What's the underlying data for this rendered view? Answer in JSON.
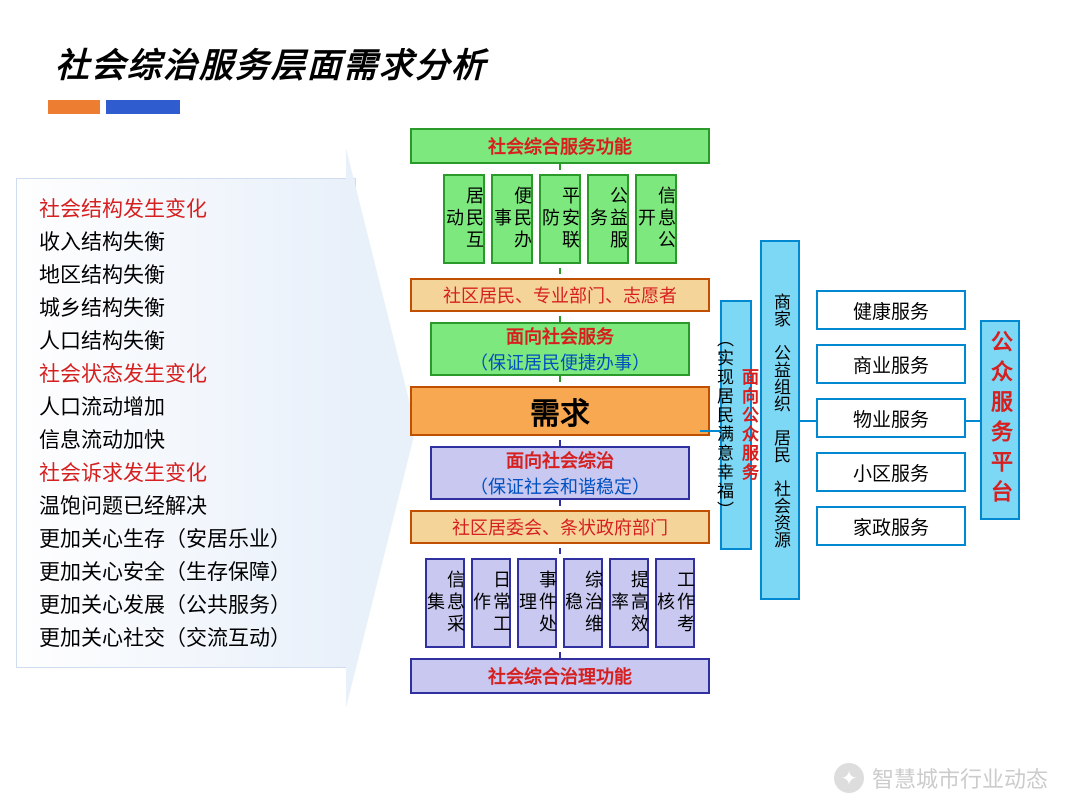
{
  "title": "社会综治服务层面需求分析",
  "left_items": [
    {
      "text": "社会结构发生变化",
      "red": true
    },
    {
      "text": "收入结构失衡",
      "red": false
    },
    {
      "text": "地区结构失衡",
      "red": false
    },
    {
      "text": "城乡结构失衡",
      "red": false
    },
    {
      "text": "人口结构失衡",
      "red": false
    },
    {
      "text": "社会状态发生变化",
      "red": true
    },
    {
      "text": "人口流动增加",
      "red": false
    },
    {
      "text": "信息流动加快",
      "red": false
    },
    {
      "text": "社会诉求发生变化",
      "red": true
    },
    {
      "text": "温饱问题已经解决",
      "red": false
    },
    {
      "text": "更加关心生存（安居乐业）",
      "red": false
    },
    {
      "text": "更加关心安全（生存保障）",
      "red": false
    },
    {
      "text": "更加关心发展（公共服务）",
      "red": false
    },
    {
      "text": "更加关心社交（交流互动）",
      "red": false
    }
  ],
  "top_header": "社会综合服务功能",
  "top_cells": [
    "居民互动",
    "便民办事",
    "平安联防",
    "公益服务",
    "信息公开"
  ],
  "top_actors": "社区居民、专业部门、志愿者",
  "svc_up_t1": "面向社会服务",
  "svc_up_t2": "（保证居民便捷办事）",
  "need": "需求",
  "svc_dn_t1": "面向社会综治",
  "svc_dn_t2": "（保证社会和谐稳定）",
  "bot_actors": "社区居委会、条状政府部门",
  "bot_cells": [
    "信息采集",
    "日常工作",
    "事件处理",
    "综治维稳",
    "提高效率",
    "工作考核"
  ],
  "bot_header": "社会综合治理功能",
  "vc1_top": "面向公众服务",
  "vc1_sub": "（实现居民满意幸福）",
  "vc2": "商家　公益组织　居民　社会资源",
  "services": [
    "健康服务",
    "商业服务",
    "物业服务",
    "小区服务",
    "家政服务"
  ],
  "vc3": "公众服务平台",
  "watermark": "智慧城市行业动态",
  "colors": {
    "green_border": "#2a9a2a",
    "green_fill": "#7de87d",
    "purple_border": "#3030a0",
    "purple_fill": "#c8c8f0",
    "orange_border": "#c05000",
    "orange_fill": "#f8a850",
    "earth_fill": "#f5d49a",
    "cyan_border": "#0088d0",
    "cyan_fill": "#7dd8f5",
    "red_text": "#d62020",
    "blue_text": "#0050c0",
    "bar_orange": "#ed7d31",
    "bar_blue": "#2f5dd0"
  }
}
